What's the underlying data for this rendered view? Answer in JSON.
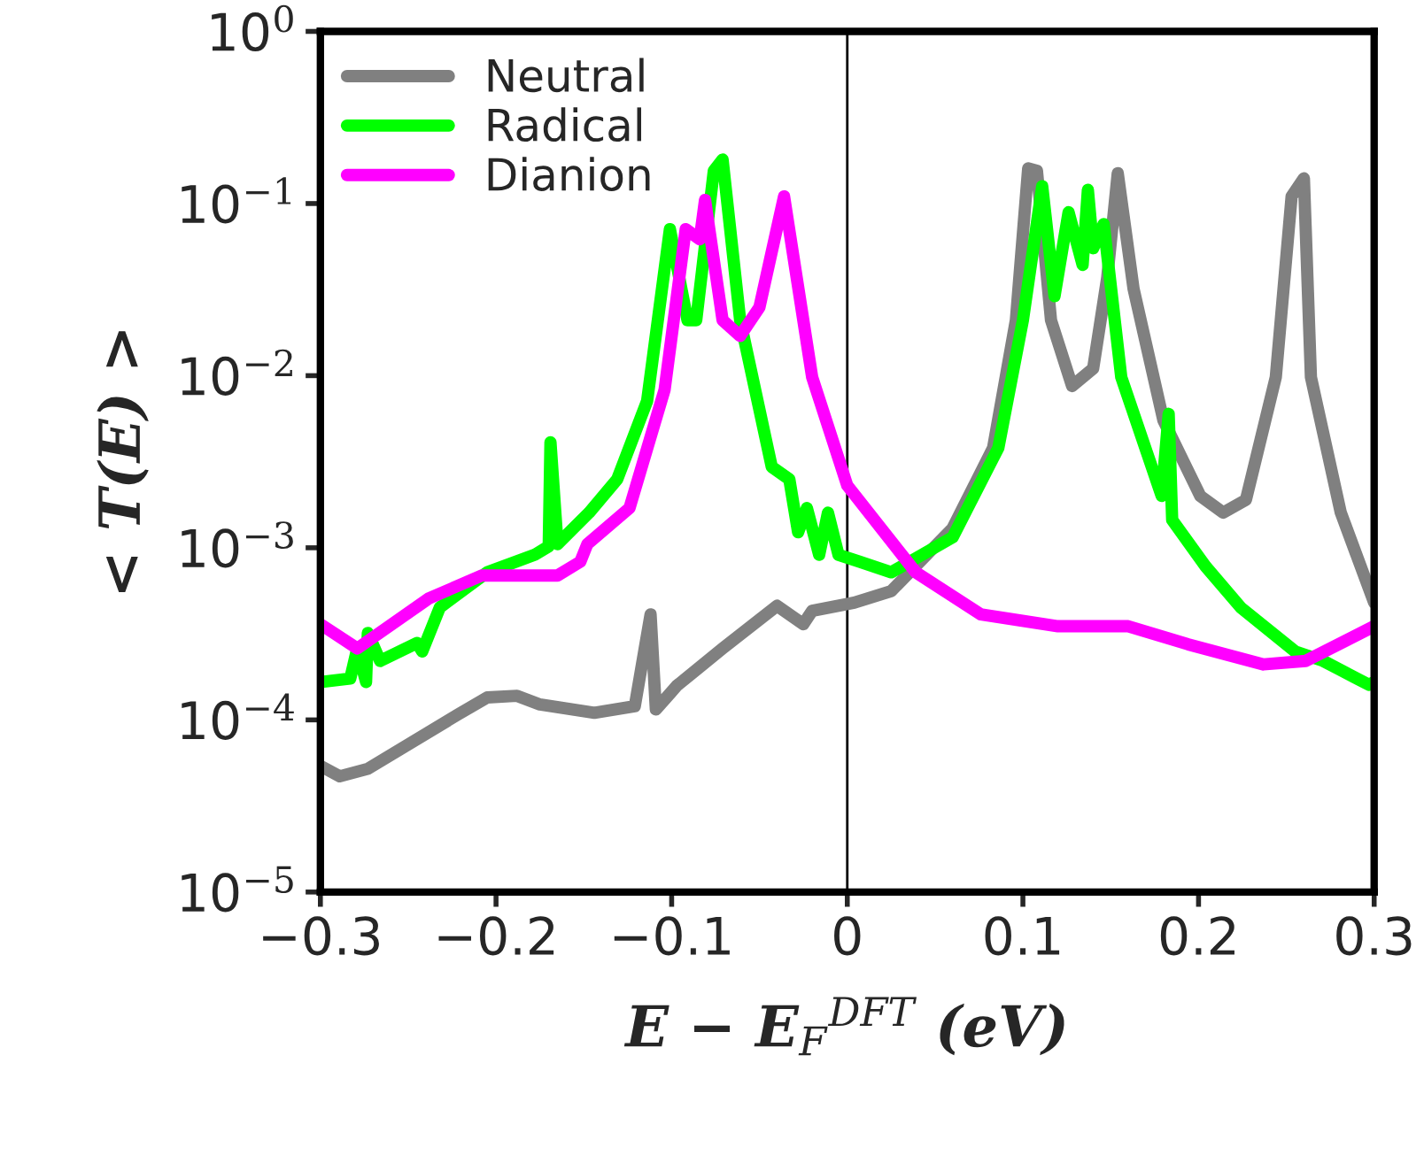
{
  "chart_data": {
    "type": "line",
    "xlabel": "E − E$_{F}$$^{DFT}$ (eV)",
    "ylabel": "< T(E) >",
    "log": "y",
    "xlim": [
      -0.3,
      0.3
    ],
    "ylim": [
      1e-05,
      1
    ],
    "xticks": [
      {
        "value": -0.3,
        "label": "−0.3"
      },
      {
        "value": -0.2,
        "label": "−0.2"
      },
      {
        "value": -0.1,
        "label": "−0.1"
      },
      0,
      0.1,
      0.2,
      0.3
    ],
    "yticks": [
      {
        "value": 1e-05,
        "label": "10$^{−5}$"
      },
      {
        "value": 0.0001,
        "label": "10$^{−4}$"
      },
      {
        "value": 0.001,
        "label": "10$^{−3}$"
      },
      {
        "value": 0.01,
        "label": "10$^{−2}$"
      },
      {
        "value": 0.1,
        "label": "10$^{−1}$"
      },
      {
        "value": 1,
        "label": "10$^{0}$"
      }
    ],
    "grid": false,
    "legend": "top left",
    "marker": "none",
    "line_style": "solid",
    "ref_lines": [
      {
        "axis": "x",
        "value": 0,
        "color": "#000000"
      }
    ],
    "series": [
      {
        "name": "Neutral",
        "color": "#808080",
        "x": [
          -0.3,
          -0.289,
          -0.273,
          -0.222,
          -0.205,
          -0.188,
          -0.175,
          -0.144,
          -0.121,
          -0.112,
          -0.109,
          -0.097,
          -0.071,
          -0.04,
          -0.025,
          -0.02,
          0.004,
          0.025,
          0.06,
          0.083,
          0.096,
          0.103,
          0.108,
          0.116,
          0.128,
          0.14,
          0.148,
          0.154,
          0.163,
          0.18,
          0.201,
          0.214,
          0.227,
          0.244,
          0.253,
          0.26,
          0.264,
          0.281,
          0.3
        ],
        "values": [
          5.4e-05,
          4.7e-05,
          5.2e-05,
          0.000107,
          0.000135,
          0.000138,
          0.000123,
          0.00011,
          0.00012,
          0.00041,
          0.000115,
          0.000158,
          0.00026,
          0.00046,
          0.00036,
          0.00043,
          0.00048,
          0.00056,
          0.0013,
          0.0038,
          0.021,
          0.16,
          0.155,
          0.021,
          0.0087,
          0.011,
          0.037,
          0.15,
          0.032,
          0.0055,
          0.002,
          0.0016,
          0.0019,
          0.0098,
          0.11,
          0.14,
          0.0098,
          0.0016,
          0.00048
        ]
      },
      {
        "name": "Radical",
        "color": "#00ff00",
        "x": [
          -0.3,
          -0.283,
          -0.279,
          -0.274,
          -0.273,
          -0.266,
          -0.245,
          -0.242,
          -0.232,
          -0.205,
          -0.178,
          -0.17,
          -0.169,
          -0.165,
          -0.147,
          -0.131,
          -0.114,
          -0.101,
          -0.091,
          -0.086,
          -0.076,
          -0.071,
          -0.061,
          -0.043,
          -0.033,
          -0.028,
          -0.023,
          -0.016,
          -0.011,
          -0.005,
          0.007,
          0.025,
          0.06,
          0.086,
          0.1,
          0.111,
          0.118,
          0.126,
          0.134,
          0.137,
          0.14,
          0.146,
          0.156,
          0.179,
          0.183,
          0.185,
          0.204,
          0.224,
          0.255,
          0.271,
          0.297,
          0.3
        ],
        "values": [
          0.000166,
          0.000174,
          0.00026,
          0.000166,
          0.00032,
          0.00022,
          0.00028,
          0.00025,
          0.00045,
          0.00072,
          0.00091,
          0.00102,
          0.0041,
          0.00105,
          0.0016,
          0.0025,
          0.0071,
          0.071,
          0.021,
          0.021,
          0.155,
          0.18,
          0.021,
          0.00295,
          0.0025,
          0.00123,
          0.0017,
          0.00091,
          0.0016,
          0.00091,
          0.00083,
          0.00072,
          0.00115,
          0.0038,
          0.021,
          0.126,
          0.029,
          0.089,
          0.044,
          0.12,
          0.055,
          0.076,
          0.0098,
          0.002,
          0.006,
          0.00145,
          0.00078,
          0.00045,
          0.00025,
          0.00022,
          0.00016,
          0.000166
        ]
      },
      {
        "name": "Dianion",
        "color": "#ff00ff",
        "x": [
          -0.3,
          -0.279,
          -0.238,
          -0.208,
          -0.165,
          -0.152,
          -0.148,
          -0.124,
          -0.104,
          -0.092,
          -0.084,
          -0.081,
          -0.071,
          -0.061,
          -0.05,
          -0.036,
          -0.02,
          0.0,
          0.039,
          0.076,
          0.12,
          0.16,
          0.194,
          0.237,
          0.261,
          0.3
        ],
        "values": [
          0.00036,
          0.00026,
          0.00051,
          0.00069,
          0.00069,
          0.00083,
          0.00105,
          0.0017,
          0.0083,
          0.071,
          0.062,
          0.105,
          0.021,
          0.017,
          0.025,
          0.11,
          0.0098,
          0.0023,
          0.00072,
          0.00041,
          0.00035,
          0.00035,
          0.000275,
          0.00021,
          0.00022,
          0.00035
        ]
      }
    ]
  }
}
